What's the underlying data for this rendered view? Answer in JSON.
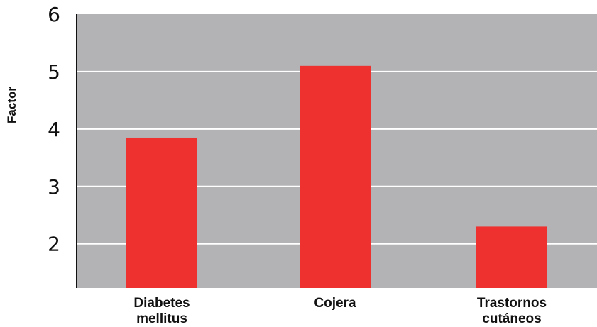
{
  "chart_data": {
    "type": "bar",
    "title": "",
    "xlabel": "",
    "ylabel": "Factor",
    "categories": [
      [
        "Diabetes",
        "mellitus"
      ],
      [
        "Cojera"
      ],
      [
        "Trastornos",
        "cutáneos"
      ]
    ],
    "values": [
      3.85,
      5.1,
      2.3
    ],
    "ylim": [
      1.23,
      6
    ],
    "yticks": [
      "2",
      "3",
      "4",
      "5",
      "6"
    ],
    "grid": true,
    "legend": "none",
    "colors": {
      "bar": "#ee302e",
      "plot_background": "#b3b3b5",
      "gridline": "#ffffff",
      "axis": "#111111"
    }
  }
}
